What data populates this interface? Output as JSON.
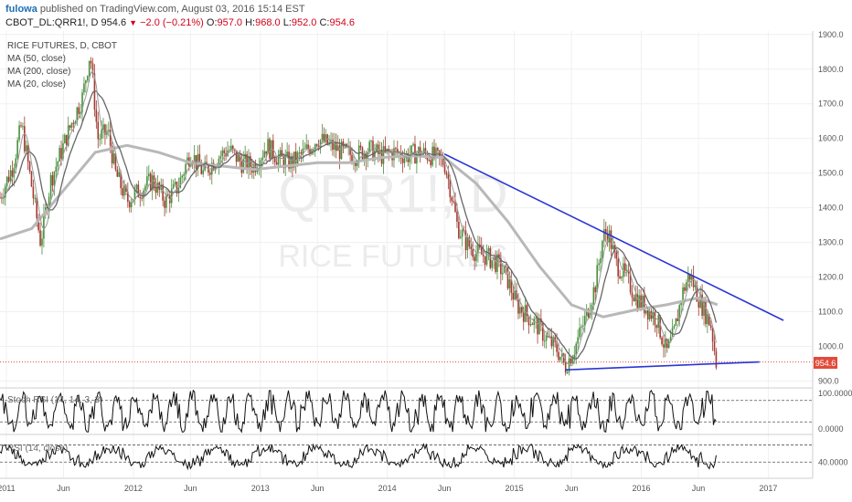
{
  "header": {
    "user": "fulowa",
    "published": "published on TradingView.com, August 03, 2016 15:14 EST",
    "symbol": "CBOT_DL:QRR1!, D",
    "last": "954.6",
    "change": "−2.0 (−0.21%)",
    "o_label": "O:",
    "o_value": "957.0",
    "h_label": "H:",
    "h_value": "968.0",
    "l_label": "L:",
    "l_value": "952.0",
    "c_label": "C:",
    "c_value": "954.6"
  },
  "legend": {
    "title": "RICE FUTURES, D, CBOT",
    "ma50": "MA (50, close)",
    "ma200": "MA (200, close)",
    "ma20": "MA (20, close)"
  },
  "watermark": {
    "symbol": "QRR1!, D",
    "name": "RICE FUTURES"
  },
  "indicators": {
    "stoch": {
      "label": "Stoch RSI (14, 14, 3, 3)",
      "upper": "100.0000",
      "lower": "0.0000"
    },
    "rsi": {
      "label": "RSI (14, close)",
      "level": "40.0000"
    }
  },
  "colors": {
    "candle_up": "#4a8f3c",
    "candle_down": "#a33a30",
    "ma200": "#b8b8b8",
    "ma50": "#666666",
    "ma20": "#999999",
    "trendline": "#2a35d6",
    "last_price": "#e24b3b"
  },
  "chart_data": {
    "type": "line",
    "title": "RICE FUTURES, D, CBOT",
    "price_axis": {
      "ylim": [
        880,
        1910
      ],
      "ticks": [
        "1900.0",
        "1800.0",
        "1700.0",
        "1600.0",
        "1500.0",
        "1400.0",
        "1300.0",
        "1200.0",
        "1100.0",
        "1000.0",
        "900.0"
      ],
      "last_label": "954.6"
    },
    "time_axis": {
      "xlim": [
        2010.95,
        2017.35
      ],
      "ticks": [
        {
          "x": 2011.0,
          "label": "2011"
        },
        {
          "x": 2011.45,
          "label": "Jun"
        },
        {
          "x": 2012.0,
          "label": "2012"
        },
        {
          "x": 2012.45,
          "label": "Jun"
        },
        {
          "x": 2013.0,
          "label": "2013"
        },
        {
          "x": 2013.45,
          "label": "Jun"
        },
        {
          "x": 2014.0,
          "label": "2014"
        },
        {
          "x": 2014.45,
          "label": "Jun"
        },
        {
          "x": 2015.0,
          "label": "2015"
        },
        {
          "x": 2015.45,
          "label": "Jun"
        },
        {
          "x": 2016.0,
          "label": "2016"
        },
        {
          "x": 2016.45,
          "label": "Jun"
        },
        {
          "x": 2017.0,
          "label": "2017"
        }
      ]
    },
    "price_series": [
      [
        2010.95,
        1430
      ],
      [
        2011.05,
        1520
      ],
      [
        2011.12,
        1640
      ],
      [
        2011.2,
        1460
      ],
      [
        2011.27,
        1300
      ],
      [
        2011.35,
        1480
      ],
      [
        2011.43,
        1560
      ],
      [
        2011.52,
        1650
      ],
      [
        2011.6,
        1720
      ],
      [
        2011.66,
        1850
      ],
      [
        2011.72,
        1600
      ],
      [
        2011.8,
        1620
      ],
      [
        2011.86,
        1500
      ],
      [
        2011.95,
        1420
      ],
      [
        2012.05,
        1450
      ],
      [
        2012.15,
        1480
      ],
      [
        2012.25,
        1420
      ],
      [
        2012.35,
        1460
      ],
      [
        2012.45,
        1560
      ],
      [
        2012.55,
        1500
      ],
      [
        2012.65,
        1540
      ],
      [
        2012.75,
        1570
      ],
      [
        2012.85,
        1530
      ],
      [
        2012.95,
        1520
      ],
      [
        2013.05,
        1580
      ],
      [
        2013.15,
        1540
      ],
      [
        2013.25,
        1530
      ],
      [
        2013.35,
        1560
      ],
      [
        2013.45,
        1600
      ],
      [
        2013.55,
        1580
      ],
      [
        2013.65,
        1560
      ],
      [
        2013.75,
        1550
      ],
      [
        2013.85,
        1570
      ],
      [
        2013.95,
        1550
      ],
      [
        2014.05,
        1560
      ],
      [
        2014.15,
        1550
      ],
      [
        2014.25,
        1560
      ],
      [
        2014.35,
        1550
      ],
      [
        2014.45,
        1530
      ],
      [
        2014.5,
        1450
      ],
      [
        2014.55,
        1350
      ],
      [
        2014.62,
        1300
      ],
      [
        2014.7,
        1270
      ],
      [
        2014.78,
        1260
      ],
      [
        2014.86,
        1240
      ],
      [
        2014.94,
        1200
      ],
      [
        2015.02,
        1120
      ],
      [
        2015.1,
        1090
      ],
      [
        2015.18,
        1060
      ],
      [
        2015.26,
        1020
      ],
      [
        2015.34,
        990
      ],
      [
        2015.4,
        940
      ],
      [
        2015.48,
        1000
      ],
      [
        2015.56,
        1080
      ],
      [
        2015.64,
        1180
      ],
      [
        2015.7,
        1320
      ],
      [
        2015.74,
        1330
      ],
      [
        2015.8,
        1240
      ],
      [
        2015.88,
        1200
      ],
      [
        2015.96,
        1140
      ],
      [
        2016.04,
        1110
      ],
      [
        2016.12,
        1080
      ],
      [
        2016.2,
        980
      ],
      [
        2016.26,
        1040
      ],
      [
        2016.32,
        1150
      ],
      [
        2016.38,
        1210
      ],
      [
        2016.44,
        1150
      ],
      [
        2016.5,
        1100
      ],
      [
        2016.55,
        1060
      ],
      [
        2016.59,
        955
      ]
    ],
    "ma200_series": [
      [
        2010.95,
        1310
      ],
      [
        2011.2,
        1340
      ],
      [
        2011.45,
        1450
      ],
      [
        2011.7,
        1560
      ],
      [
        2011.95,
        1580
      ],
      [
        2012.2,
        1560
      ],
      [
        2012.45,
        1530
      ],
      [
        2012.7,
        1520
      ],
      [
        2012.95,
        1510
      ],
      [
        2013.2,
        1520
      ],
      [
        2013.45,
        1530
      ],
      [
        2013.7,
        1530
      ],
      [
        2013.95,
        1545
      ],
      [
        2014.2,
        1550
      ],
      [
        2014.45,
        1545
      ],
      [
        2014.7,
        1470
      ],
      [
        2014.95,
        1360
      ],
      [
        2015.2,
        1230
      ],
      [
        2015.45,
        1120
      ],
      [
        2015.7,
        1085
      ],
      [
        2015.95,
        1105
      ],
      [
        2016.2,
        1120
      ],
      [
        2016.45,
        1140
      ],
      [
        2016.6,
        1120
      ]
    ],
    "trendlines": [
      {
        "name": "resistance",
        "points": [
          [
            2014.45,
            1555
          ],
          [
            2017.12,
            1075
          ]
        ]
      },
      {
        "name": "support",
        "points": [
          [
            2015.4,
            932
          ],
          [
            2016.93,
            955
          ]
        ]
      }
    ],
    "last_price": 954.6,
    "stoch_rsi": {
      "ylim": [
        -10,
        110
      ],
      "levels": [
        80,
        20
      ]
    },
    "rsi": {
      "ylim": [
        15,
        85
      ],
      "levels": [
        70,
        40
      ]
    }
  }
}
